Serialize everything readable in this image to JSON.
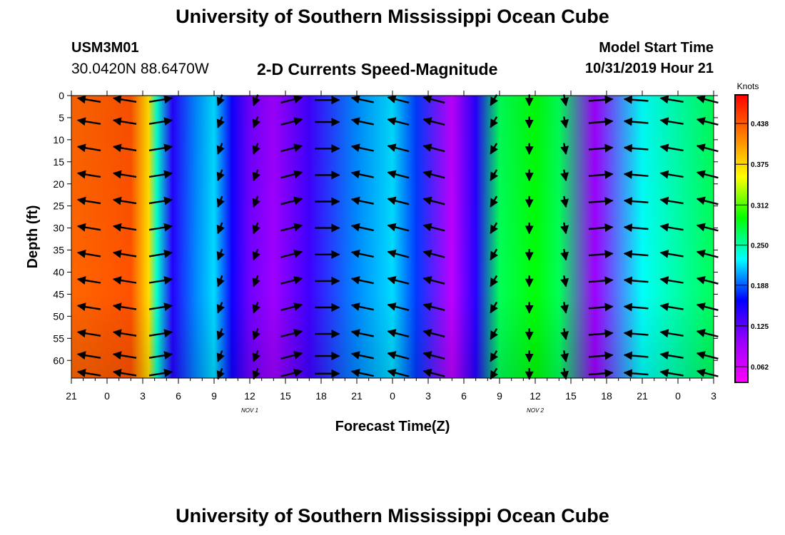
{
  "header": {
    "title": "University of Southern Mississippi Ocean Cube",
    "station_id": "USM3M01",
    "station_coords": "30.0420N 88.6470W",
    "plot_title": "2-D Currents Speed-Magnitude",
    "start_label": "Model Start Time",
    "start_value": "10/31/2019 Hour 21"
  },
  "footer": {
    "title": "University of Southern Mississippi Ocean Cube"
  },
  "chart_data": {
    "type": "heatmap",
    "xlabel": "Forecast Time(Z)",
    "ylabel": "Depth (ft)",
    "x_tick_labels": [
      "21",
      "0",
      "3",
      "6",
      "9",
      "12",
      "15",
      "18",
      "21",
      "0",
      "3",
      "6",
      "9",
      "12",
      "15",
      "18",
      "21",
      "0",
      "3"
    ],
    "x_range_hours": [
      0,
      54
    ],
    "date_labels": [
      {
        "label": "NOV 1",
        "hour": 15
      },
      {
        "label": "NOV 2",
        "hour": 39
      }
    ],
    "y_ticks": [
      0,
      5,
      10,
      15,
      20,
      25,
      30,
      35,
      40,
      45,
      50,
      55,
      60
    ],
    "ylim": [
      0,
      64
    ],
    "y_inverted": true,
    "colorbar": {
      "unit_label": "Knots",
      "tick_labels": [
        "0.438",
        "0.375",
        "0.312",
        "0.250",
        "0.188",
        "0.125",
        "0.062"
      ],
      "tick_values": [
        0.438,
        0.375,
        0.312,
        0.25,
        0.188,
        0.125,
        0.062
      ],
      "min": 0.04,
      "max": 0.48,
      "colors": [
        "#ff00ff",
        "#9900ff",
        "#0000ff",
        "#00ffff",
        "#00ff00",
        "#ffff00",
        "#ff8000",
        "#ff0000"
      ]
    },
    "speed_profile": [
      {
        "hour": 0,
        "speed": 0.43
      },
      {
        "hour": 5,
        "speed": 0.44
      },
      {
        "hour": 6.5,
        "speed": 0.37
      },
      {
        "hour": 7.2,
        "speed": 0.24
      },
      {
        "hour": 8.5,
        "speed": 0.15
      },
      {
        "hour": 10.5,
        "speed": 0.2
      },
      {
        "hour": 12,
        "speed": 0.22
      },
      {
        "hour": 13.5,
        "speed": 0.16
      },
      {
        "hour": 15,
        "speed": 0.12
      },
      {
        "hour": 17,
        "speed": 0.1
      },
      {
        "hour": 20,
        "speed": 0.14
      },
      {
        "hour": 24,
        "speed": 0.2
      },
      {
        "hour": 27,
        "speed": 0.22
      },
      {
        "hour": 29,
        "speed": 0.18
      },
      {
        "hour": 32,
        "speed": 0.08
      },
      {
        "hour": 34,
        "speed": 0.15
      },
      {
        "hour": 36,
        "speed": 0.27
      },
      {
        "hour": 39,
        "speed": 0.29
      },
      {
        "hour": 41,
        "speed": 0.27
      },
      {
        "hour": 44,
        "speed": 0.1
      },
      {
        "hour": 48,
        "speed": 0.23
      },
      {
        "hour": 54,
        "speed": 0.27
      }
    ],
    "vector_columns": [
      {
        "hour": 1.5,
        "direction_deg": 290
      },
      {
        "hour": 4.5,
        "direction_deg": 290
      },
      {
        "hour": 7.5,
        "direction_deg": 70
      },
      {
        "hour": 12.5,
        "direction_deg": 190
      },
      {
        "hour": 15.5,
        "direction_deg": 190
      },
      {
        "hour": 18.5,
        "direction_deg": 60
      },
      {
        "hour": 21.5,
        "direction_deg": 90
      },
      {
        "hour": 24.5,
        "direction_deg": 295
      },
      {
        "hour": 27.5,
        "direction_deg": 300
      },
      {
        "hour": 30.5,
        "direction_deg": 300
      },
      {
        "hour": 35.5,
        "direction_deg": 195
      },
      {
        "hour": 38.5,
        "direction_deg": 180
      },
      {
        "hour": 41.5,
        "direction_deg": 175
      },
      {
        "hour": 44.5,
        "direction_deg": 80
      },
      {
        "hour": 47.5,
        "direction_deg": 280
      },
      {
        "hour": 50.5,
        "direction_deg": 290
      },
      {
        "hour": 53.5,
        "direction_deg": 300
      }
    ],
    "vector_depths": [
      1,
      6,
      12,
      18,
      24,
      30,
      36,
      42,
      48,
      54,
      59,
      63
    ]
  }
}
